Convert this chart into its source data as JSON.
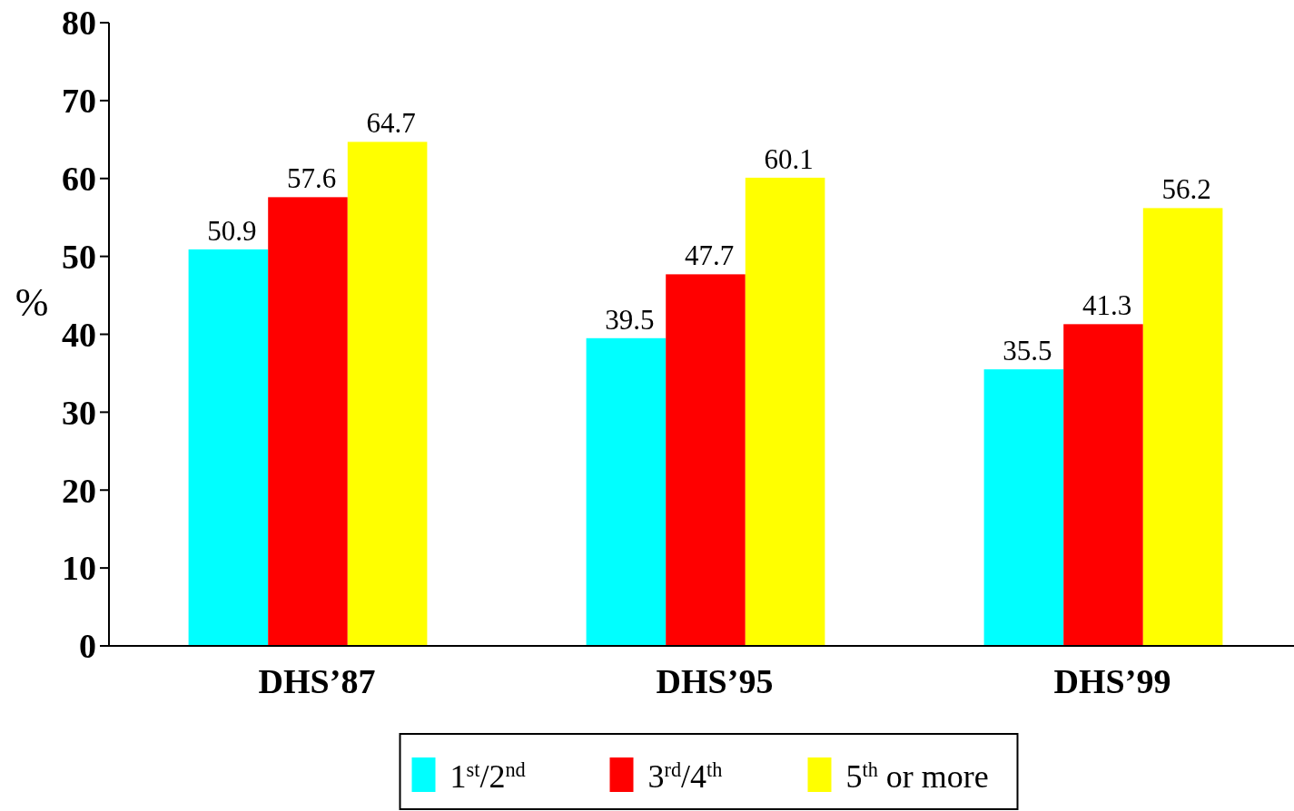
{
  "chart_data": {
    "type": "bar",
    "categories": [
      "DHS’87",
      "DHS’95",
      "DHS’99"
    ],
    "series": [
      {
        "name": "1$^{st}$/2$^{nd}$",
        "color": "#00ffff",
        "values": [
          50.9,
          39.5,
          35.5
        ]
      },
      {
        "name": "3$^{rd}$/4$^{th}$",
        "color": "#ff0000",
        "values": [
          57.6,
          47.7,
          41.3
        ]
      },
      {
        "name": "5$^{th}$ or more",
        "color": "#ffff00",
        "values": [
          64.7,
          60.1,
          56.2
        ]
      }
    ],
    "ylabel": "%",
    "ylim": [
      0,
      80
    ],
    "yticks": [
      0,
      10,
      20,
      30,
      40,
      50,
      60,
      70,
      80
    ],
    "data_labels": true,
    "legend": "bottom",
    "grid": false
  }
}
